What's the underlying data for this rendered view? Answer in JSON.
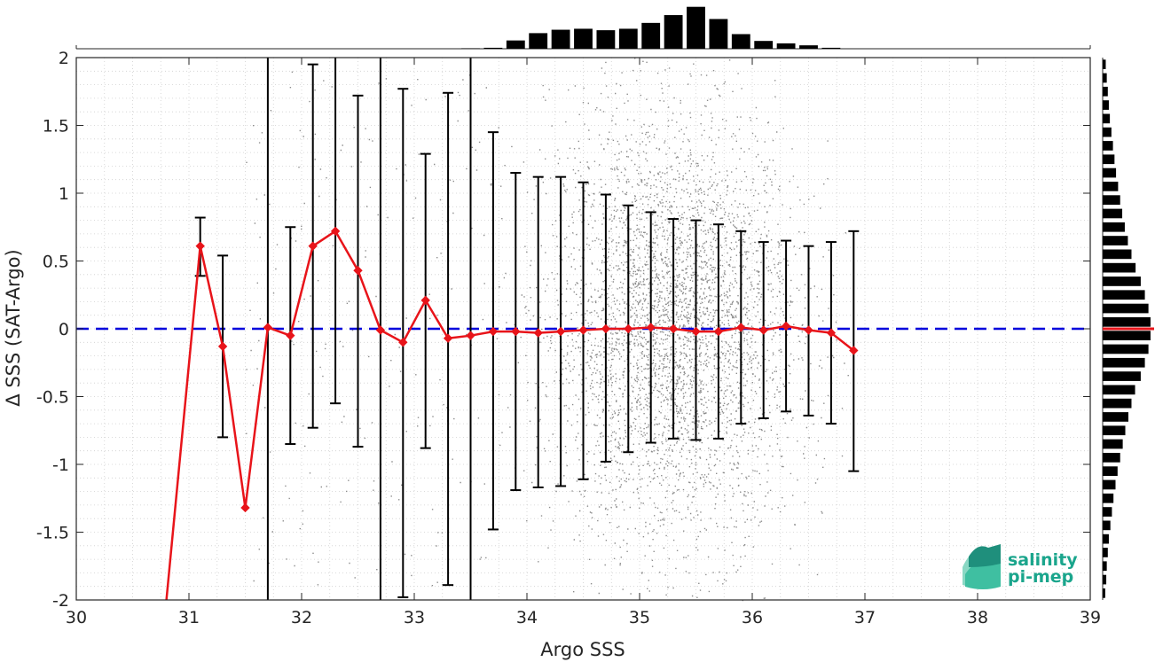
{
  "chart_data": {
    "type": "scatter",
    "xlabel": "Argo SSS",
    "ylabel": "Δ SSS (SAT-Argo)",
    "xlim": [
      30,
      39
    ],
    "ylim": [
      -2,
      2
    ],
    "x_ticks": [
      "30",
      "31",
      "32",
      "33",
      "34",
      "35",
      "36",
      "37",
      "38",
      "39"
    ],
    "y_ticks": [
      "-2",
      "-1.5",
      "-1",
      "-0.5",
      "0",
      "0.5",
      "1",
      "1.5",
      "2"
    ],
    "grid": "dotted, minor",
    "zero_line": {
      "y": 0,
      "style": "dashed",
      "color": "#0000dd"
    },
    "scatter_cloud": {
      "color": "#8c8c8c",
      "x_range": [
        33.8,
        36.9
      ],
      "x_center": 35.3,
      "y_spread": 0.8
    },
    "binned_stats": {
      "color": "#e8141a",
      "x": [
        30.8,
        31.1,
        31.3,
        31.5,
        31.7,
        31.9,
        32.1,
        32.3,
        32.5,
        32.7,
        32.9,
        33.1,
        33.3,
        33.5,
        33.7,
        33.9,
        34.1,
        34.3,
        34.5,
        34.7,
        34.9,
        35.1,
        35.3,
        35.5,
        35.7,
        35.9,
        36.1,
        36.3,
        36.5,
        36.7,
        36.9
      ],
      "mean": [
        -2.0,
        0.61,
        -0.13,
        -1.32,
        0.01,
        -0.05,
        0.61,
        0.72,
        0.43,
        -0.01,
        -0.1,
        0.21,
        -0.07,
        -0.05,
        -0.02,
        -0.02,
        -0.03,
        -0.02,
        -0.01,
        0.0,
        0.0,
        0.01,
        0.0,
        -0.02,
        -0.02,
        0.01,
        -0.01,
        0.02,
        -0.01,
        -0.03,
        -0.16
      ],
      "err_low": [
        null,
        0.39,
        -0.8,
        null,
        -2.0,
        -0.85,
        -0.73,
        -0.55,
        -0.87,
        -2.0,
        -1.98,
        -0.88,
        -1.89,
        -2.0,
        -1.48,
        -1.19,
        -1.17,
        -1.16,
        -1.11,
        -0.98,
        -0.91,
        -0.84,
        -0.81,
        -0.82,
        -0.81,
        -0.7,
        -0.66,
        -0.61,
        -0.64,
        -0.7,
        -1.05
      ],
      "err_high": [
        null,
        0.82,
        0.54,
        null,
        2.0,
        0.75,
        1.95,
        2.0,
        1.72,
        2.0,
        1.77,
        1.29,
        1.74,
        2.0,
        1.45,
        1.15,
        1.12,
        1.12,
        1.08,
        0.99,
        0.91,
        0.86,
        0.81,
        0.8,
        0.77,
        0.72,
        0.64,
        0.65,
        0.61,
        0.64,
        0.72
      ]
    },
    "top_histogram": {
      "x": [
        33.5,
        33.7,
        33.9,
        34.1,
        34.3,
        34.5,
        34.7,
        34.9,
        35.1,
        35.3,
        35.5,
        35.7,
        35.9,
        36.1,
        36.3,
        36.5,
        36.7
      ],
      "counts": [
        0.01,
        0.02,
        0.17,
        0.32,
        0.39,
        0.41,
        0.38,
        0.41,
        0.53,
        0.69,
        0.86,
        0.61,
        0.3,
        0.16,
        0.11,
        0.07,
        0.02
      ]
    },
    "right_histogram": {
      "y": [
        1.95,
        1.85,
        1.75,
        1.65,
        1.55,
        1.45,
        1.35,
        1.25,
        1.15,
        1.05,
        0.95,
        0.85,
        0.75,
        0.65,
        0.55,
        0.45,
        0.35,
        0.25,
        0.15,
        0.05,
        -0.05,
        -0.15,
        -0.25,
        -0.35,
        -0.45,
        -0.55,
        -0.65,
        -0.75,
        -0.85,
        -0.95,
        -1.05,
        -1.15,
        -1.25,
        -1.35,
        -1.45,
        -1.55,
        -1.65,
        -1.75,
        -1.85,
        -1.95
      ],
      "counts": [
        0.06,
        0.08,
        0.1,
        0.12,
        0.14,
        0.17,
        0.2,
        0.23,
        0.26,
        0.3,
        0.34,
        0.38,
        0.43,
        0.49,
        0.56,
        0.64,
        0.74,
        0.82,
        0.89,
        0.93,
        0.93,
        0.89,
        0.82,
        0.74,
        0.63,
        0.56,
        0.5,
        0.44,
        0.39,
        0.34,
        0.29,
        0.25,
        0.21,
        0.18,
        0.15,
        0.12,
        0.1,
        0.08,
        0.07,
        0.05
      ],
      "median_marker": {
        "y": 0,
        "color": "#e8141a"
      }
    }
  },
  "logo": {
    "line1": "salinity",
    "line2": "pi-mep",
    "color": "#1aa58c"
  }
}
